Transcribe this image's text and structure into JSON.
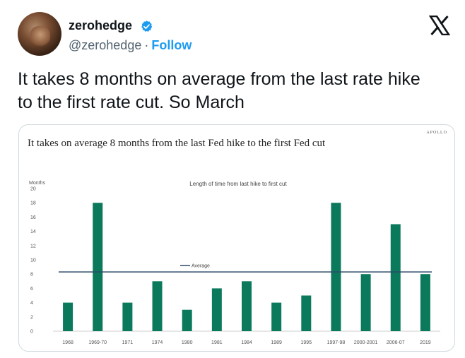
{
  "tweet": {
    "display_name": "zerohedge",
    "handle": "@zerohedge",
    "separator": "·",
    "follow_label": "Follow",
    "text_line1": "It takes 8 months on average from the last rate hike",
    "text_line2": "to the first rate cut. So March",
    "icons": {
      "avatar": "profile-photo",
      "verified": "verified-badge-icon",
      "brand": "x-logo-icon"
    },
    "colors": {
      "follow": "#1d9bf0",
      "verified": "#1d9bf0",
      "bar": "#0b7a5c",
      "average_line": "#2f4a6a"
    }
  },
  "chart_data": {
    "type": "bar",
    "title": "It takes on average 8 months from the last Fed hike to the first Fed cut",
    "subtitle": "Length of time from last hike to first cut",
    "brand": "APOLLO",
    "ylabel": "Months",
    "ylim": [
      0,
      20
    ],
    "yticks": [
      0,
      2,
      4,
      6,
      8,
      10,
      12,
      14,
      16,
      18,
      20
    ],
    "categories": [
      "1968",
      "1969-70",
      "1971",
      "1974",
      "1980",
      "1981",
      "1984",
      "1989",
      "1995",
      "1997-98",
      "2000-2001",
      "2006-07",
      "2019"
    ],
    "values": [
      4,
      18,
      4,
      7,
      3,
      6,
      7,
      4,
      5,
      18,
      8,
      15,
      8
    ],
    "average": {
      "label": "Average",
      "value": 8.3
    },
    "grid": false
  }
}
